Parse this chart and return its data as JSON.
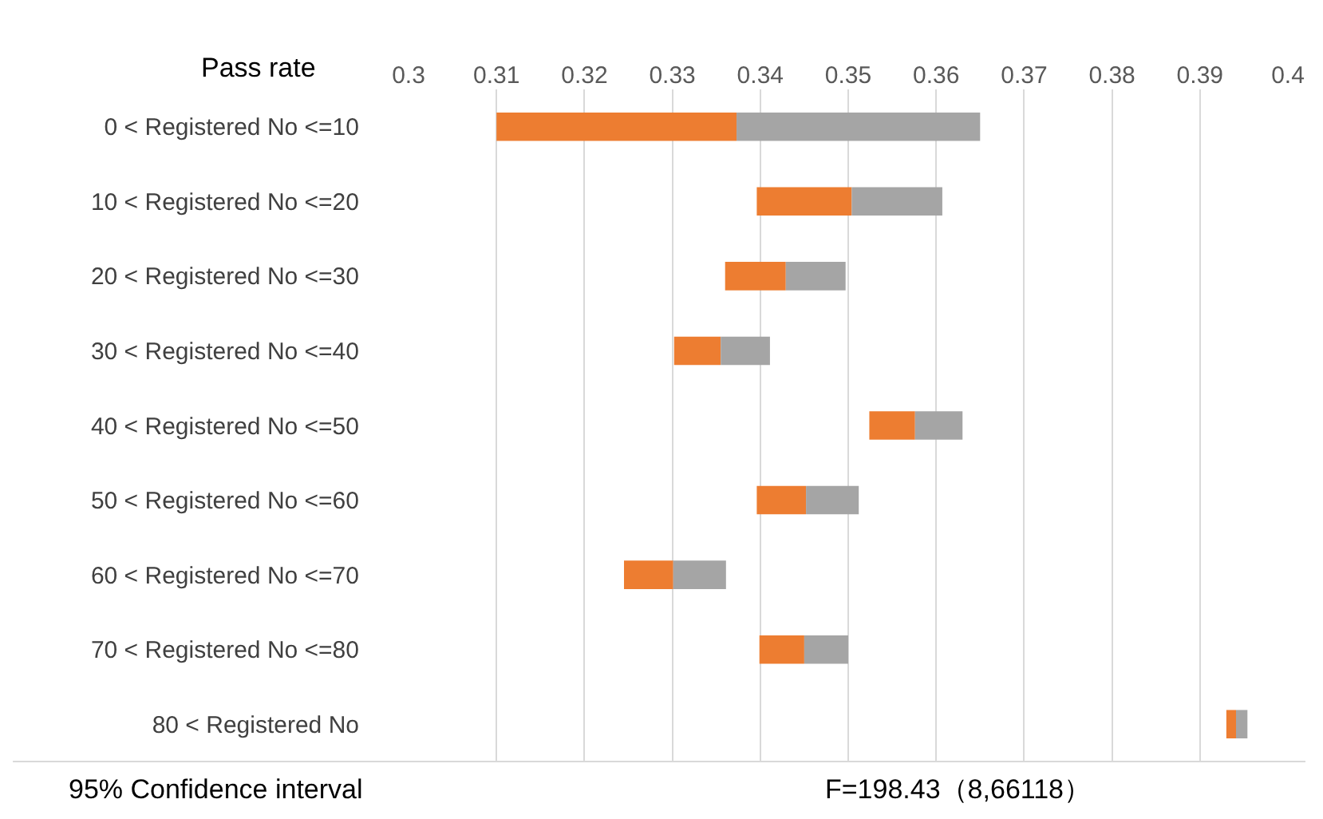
{
  "chart_data": {
    "type": "bar",
    "orientation": "horizontal",
    "ylabel": "Pass rate",
    "categories": [
      "0 < Registered No <=10",
      "10 < Registered No <=20",
      "20 < Registered No <=30",
      "30 < Registered No <=40",
      "40 < Registered No <=50",
      "50 < Registered No <=60",
      "60 < Registered No <=70",
      "70 < Registered No <=80",
      "80 < Registered No"
    ],
    "series": [
      {
        "color": "#ed7d31",
        "base": [
          0.31,
          0.3396,
          0.336,
          0.3302,
          0.3524,
          0.3396,
          0.3245,
          0.3399,
          0.393
        ],
        "values": [
          0.0273,
          0.0108,
          0.0069,
          0.0053,
          0.0052,
          0.0056,
          0.0056,
          0.0051,
          0.0011
        ]
      },
      {
        "color": "#a5a5a5",
        "base": [
          0.3373,
          0.3504,
          0.3429,
          0.3355,
          0.3576,
          0.3452,
          0.3301,
          0.345,
          0.3941
        ],
        "values": [
          0.0277,
          0.0103,
          0.0068,
          0.0056,
          0.0054,
          0.006,
          0.006,
          0.005,
          0.0013
        ]
      }
    ],
    "xlim": [
      0.3,
      0.4
    ],
    "xticks": [
      0.3,
      0.31,
      0.32,
      0.33,
      0.34,
      0.35,
      0.36,
      0.37,
      0.38,
      0.39,
      0.4
    ],
    "grid": "x",
    "annotations": [
      "95% Confidence interval",
      "F=198.43（8,66118）"
    ]
  }
}
